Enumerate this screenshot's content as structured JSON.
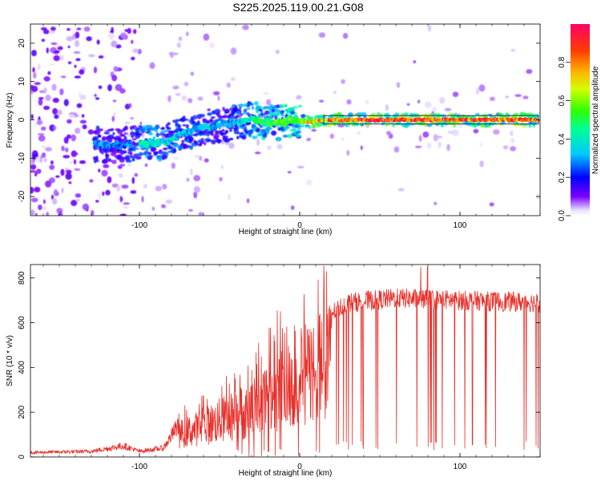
{
  "figure": {
    "title": "S225.2025.119.00.21.G08"
  },
  "colors": {
    "snr_line": "#e8302a",
    "frame": "#000000",
    "colormap": [
      "#ffffff",
      "#d8c8ff",
      "#7a00ff",
      "#0000ff",
      "#00c8ff",
      "#00ff64",
      "#ffff00",
      "#ff7f00",
      "#ff0050"
    ]
  },
  "chart_data": [
    {
      "type": "heatmap",
      "xlabel": "Height of straight line (km)",
      "ylabel": "Frequency (Hz)",
      "xlim": [
        -168,
        150
      ],
      "ylim": [
        -25,
        25
      ],
      "xticks": [
        {
          "v": -100,
          "label": "-100"
        },
        {
          "v": 0,
          "label": "0"
        },
        {
          "v": 100,
          "label": "100"
        }
      ],
      "yticks": [
        {
          "v": -20,
          "label": "-20"
        },
        {
          "v": -10,
          "label": "-10"
        },
        {
          "v": 0,
          "label": "0"
        },
        {
          "v": 10,
          "label": "10"
        },
        {
          "v": 20,
          "label": "20"
        }
      ],
      "ridge": [
        {
          "x": -125,
          "f": -6.5,
          "a": 0.3
        },
        {
          "x": -112,
          "f": -6.5,
          "a": 0.25
        },
        {
          "x": -95,
          "f": -6.0,
          "a": 0.45
        },
        {
          "x": -85,
          "f": -6.0,
          "a": 0.4
        },
        {
          "x": -75,
          "f": -4.0,
          "a": 0.35
        },
        {
          "x": -60,
          "f": -2.0,
          "a": 0.35
        },
        {
          "x": -45,
          "f": -1.0,
          "a": 0.3
        },
        {
          "x": -30,
          "f": 0.0,
          "a": 0.45
        },
        {
          "x": -15,
          "f": -1.0,
          "a": 0.55
        },
        {
          "x": -5,
          "f": 0.0,
          "a": 0.6
        },
        {
          "x": 5,
          "f": -0.5,
          "a": 0.7
        },
        {
          "x": 20,
          "f": 0.0,
          "a": 0.85
        },
        {
          "x": 50,
          "f": 0.0,
          "a": 0.9
        },
        {
          "x": 100,
          "f": 0.0,
          "a": 0.92
        },
        {
          "x": 148,
          "f": 0.0,
          "a": 0.85
        }
      ],
      "colorbar": {
        "label": "Normalized spectral amplitude",
        "range": [
          0,
          1
        ],
        "ticks": [
          {
            "v": 0.0,
            "label": "0.0"
          },
          {
            "v": 0.2,
            "label": "0.2"
          },
          {
            "v": 0.4,
            "label": "0.4"
          },
          {
            "v": 0.6,
            "label": "0.6"
          },
          {
            "v": 0.8,
            "label": "0.8"
          }
        ]
      }
    },
    {
      "type": "line",
      "xlabel": "Height of straight line (km)",
      "ylabel": "SNR (10 * v/v)",
      "xlim": [
        -168,
        150
      ],
      "ylim": [
        0,
        860
      ],
      "xticks": [
        {
          "v": -100,
          "label": "-100"
        },
        {
          "v": 0,
          "label": "0"
        },
        {
          "v": 100,
          "label": "100"
        }
      ],
      "yticks": [
        {
          "v": 0,
          "label": "0"
        },
        {
          "v": 200,
          "label": "200"
        },
        {
          "v": 400,
          "label": "400"
        },
        {
          "v": 600,
          "label": "600"
        },
        {
          "v": 800,
          "label": "800"
        }
      ],
      "envelope": [
        {
          "x": -168,
          "y": 20
        },
        {
          "x": -130,
          "y": 25
        },
        {
          "x": -110,
          "y": 50
        },
        {
          "x": -100,
          "y": 25
        },
        {
          "x": -85,
          "y": 40
        },
        {
          "x": -75,
          "y": 150
        },
        {
          "x": -60,
          "y": 200
        },
        {
          "x": -45,
          "y": 260
        },
        {
          "x": -30,
          "y": 320
        },
        {
          "x": -15,
          "y": 450
        },
        {
          "x": 0,
          "y": 520
        },
        {
          "x": 15,
          "y": 620
        },
        {
          "x": 30,
          "y": 690
        },
        {
          "x": 60,
          "y": 710
        },
        {
          "x": 100,
          "y": 700
        },
        {
          "x": 150,
          "y": 690
        }
      ]
    }
  ]
}
